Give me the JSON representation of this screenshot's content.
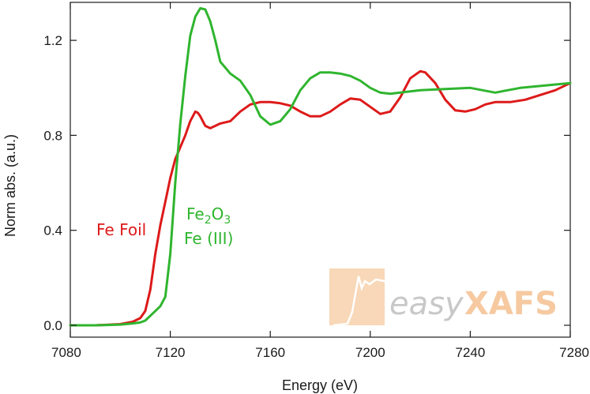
{
  "chart_data": {
    "type": "line",
    "title": "",
    "xlabel": "Energy (eV)",
    "ylabel": "Norm abs. (a.u.)",
    "xlim": [
      7080,
      7280
    ],
    "ylim": [
      -0.05,
      1.36
    ],
    "xticks": [
      7080,
      7120,
      7160,
      7200,
      7240,
      7280
    ],
    "yticks": [
      0.0,
      0.4,
      0.8,
      1.2
    ],
    "ytick_labels": [
      "0.0",
      "0.4",
      "0.8",
      "1.2"
    ],
    "grid": false,
    "series": [
      {
        "name": "Fe Foil",
        "color": "#dd1a1a",
        "x": [
          7080,
          7090,
          7100,
          7105,
          7108,
          7110,
          7112,
          7114,
          7116,
          7118,
          7120,
          7122,
          7124,
          7126,
          7128,
          7130,
          7131,
          7132,
          7134,
          7136,
          7138,
          7140,
          7144,
          7148,
          7152,
          7156,
          7160,
          7164,
          7168,
          7172,
          7176,
          7180,
          7184,
          7188,
          7192,
          7196,
          7200,
          7204,
          7208,
          7212,
          7216,
          7220,
          7222,
          7226,
          7230,
          7234,
          7238,
          7242,
          7246,
          7250,
          7256,
          7262,
          7268,
          7274,
          7280
        ],
        "y": [
          0.0,
          0.0,
          0.005,
          0.015,
          0.03,
          0.06,
          0.15,
          0.3,
          0.42,
          0.52,
          0.62,
          0.7,
          0.75,
          0.8,
          0.86,
          0.9,
          0.895,
          0.88,
          0.84,
          0.83,
          0.84,
          0.85,
          0.86,
          0.9,
          0.93,
          0.94,
          0.94,
          0.935,
          0.925,
          0.9,
          0.88,
          0.88,
          0.9,
          0.93,
          0.955,
          0.95,
          0.92,
          0.89,
          0.9,
          0.96,
          1.04,
          1.07,
          1.065,
          1.02,
          0.95,
          0.905,
          0.9,
          0.91,
          0.93,
          0.94,
          0.94,
          0.95,
          0.97,
          0.99,
          1.02
        ]
      },
      {
        "name": "Fe2O3 Fe (III)",
        "color": "#2fb52f",
        "x": [
          7080,
          7090,
          7100,
          7105,
          7108,
          7110,
          7112,
          7114,
          7116,
          7118,
          7120,
          7122,
          7124,
          7126,
          7128,
          7130,
          7132,
          7134,
          7136,
          7138,
          7140,
          7144,
          7148,
          7152,
          7156,
          7160,
          7164,
          7168,
          7172,
          7176,
          7180,
          7184,
          7188,
          7192,
          7196,
          7200,
          7204,
          7208,
          7212,
          7216,
          7220,
          7230,
          7240,
          7250,
          7260,
          7270,
          7280
        ],
        "y": [
          0.0,
          0.0,
          0.003,
          0.008,
          0.012,
          0.02,
          0.04,
          0.06,
          0.08,
          0.12,
          0.3,
          0.6,
          0.85,
          1.05,
          1.22,
          1.3,
          1.335,
          1.33,
          1.28,
          1.2,
          1.11,
          1.06,
          1.03,
          0.97,
          0.88,
          0.845,
          0.86,
          0.91,
          0.99,
          1.04,
          1.065,
          1.065,
          1.06,
          1.05,
          1.03,
          1.0,
          0.98,
          0.975,
          0.98,
          0.985,
          0.99,
          0.995,
          1.0,
          0.98,
          1.0,
          1.01,
          1.02
        ]
      }
    ],
    "annotations": [
      {
        "text_main": "Fe Foil",
        "color": "#dd1a1a"
      },
      {
        "text_parts": [
          "Fe",
          "2",
          "O",
          "3"
        ],
        "text_line2": "Fe (III)",
        "color": "#2fb52f"
      }
    ]
  },
  "watermark": {
    "text_left": "easy",
    "text_right": "XAFS",
    "color_left": "#c8c8c8",
    "color_right": "#f6c9a0",
    "logo_color": "#f8d8b8"
  }
}
